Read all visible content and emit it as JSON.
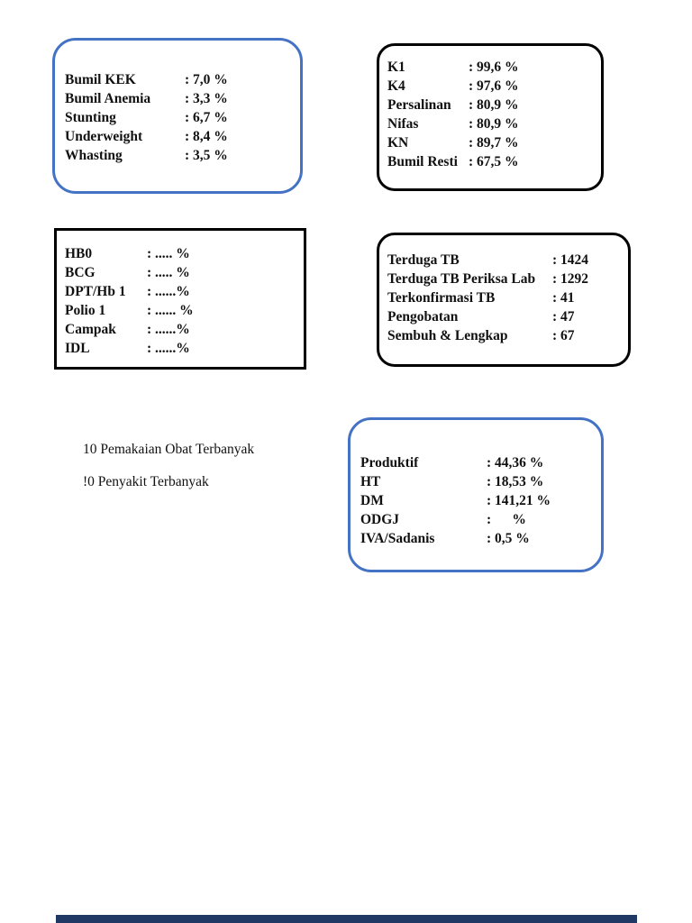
{
  "colors": {
    "accent_blue_border": "#4472C4",
    "black_border": "#000000",
    "bottom_bar_navy": "#1F3864",
    "text": "#111111",
    "page_background": "#ffffff"
  },
  "boxes": [
    {
      "name": "nutrition-stats",
      "border": "blue-rounded",
      "rows": [
        {
          "label": "Bumil KEK",
          "value": ": 7,0 %"
        },
        {
          "label": "Bumil Anemia",
          "value": ": 3,3 %"
        },
        {
          "label": "Stunting",
          "value": ": 6,7 %"
        },
        {
          "label": "Underweight",
          "value": ": 8,4 %"
        },
        {
          "label": "Whasting",
          "value": ": 3,5 %"
        }
      ]
    },
    {
      "name": "maternal-stats",
      "border": "black-rounded",
      "rows": [
        {
          "label": "K1",
          "value": ": 99,6 %"
        },
        {
          "label": "K4",
          "value": ": 97,6 %"
        },
        {
          "label": "Persalinan",
          "value": ": 80,9 %"
        },
        {
          "label": "Nifas",
          "value": ": 80,9 %"
        },
        {
          "label": "KN",
          "value": ": 89,7 %"
        },
        {
          "label": "Bumil Resti",
          "value": ": 67,5 %"
        }
      ]
    },
    {
      "name": "immunization-stats",
      "border": "black-square",
      "rows": [
        {
          "label": "HB0",
          "value": ": ..... %"
        },
        {
          "label": "BCG",
          "value": ": ..... %"
        },
        {
          "label": "DPT/Hb 1",
          "value": ": ......%"
        },
        {
          "label": "Polio 1",
          "value": ": ...... %"
        },
        {
          "label": "Campak",
          "value": ": ......%"
        },
        {
          "label": "IDL",
          "value": ": ......%"
        }
      ]
    },
    {
      "name": "tb-stats",
      "border": "black-rounded",
      "rows": [
        {
          "label": "Terduga TB",
          "value": ": 1424"
        },
        {
          "label": "Terduga TB Periksa Lab",
          "value": ": 1292"
        },
        {
          "label": "Terkonfirmasi TB",
          "value": ": 41"
        },
        {
          "label": "Pengobatan",
          "value": ": 47"
        },
        {
          "label": "Sembuh & Lengkap",
          "value": ": 67"
        }
      ]
    },
    {
      "name": "ptm-stats",
      "border": "blue-rounded",
      "rows": [
        {
          "label": "Produktif",
          "value": ": 44,36 %"
        },
        {
          "label": "HT",
          "value": ": 18,53 %"
        },
        {
          "label": "DM",
          "value": ": 141,21 %"
        },
        {
          "label": "ODGJ",
          "value": ":      %"
        },
        {
          "label": "IVA/Sadanis",
          "value": ": 0,5 %"
        }
      ]
    }
  ],
  "notes": [
    "10 Pemakaian Obat Terbanyak",
    "!0 Penyakit Terbanyak"
  ]
}
